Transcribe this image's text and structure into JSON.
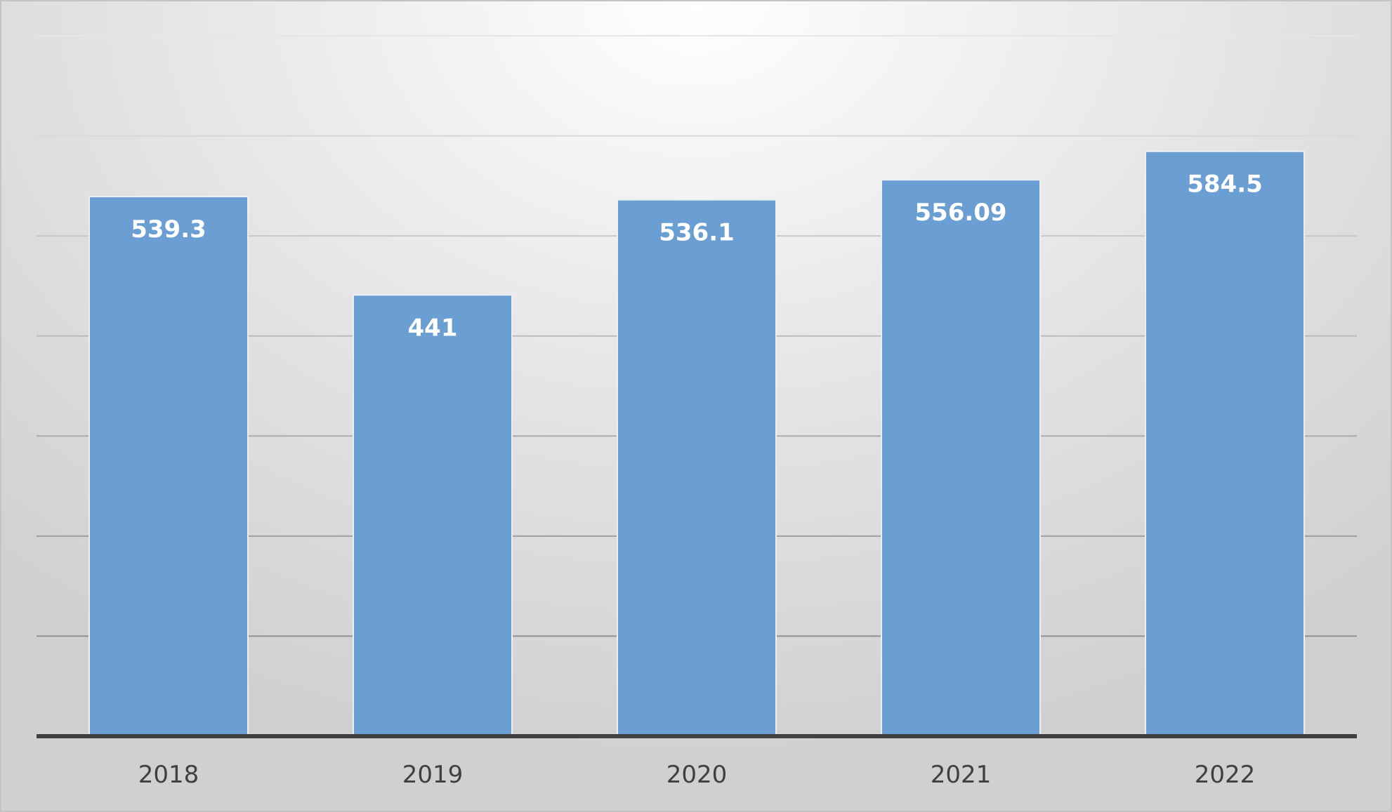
{
  "chart_data": {
    "type": "bar",
    "categories": [
      "2018",
      "2019",
      "2020",
      "2021",
      "2022"
    ],
    "values": [
      539.3,
      441,
      536.1,
      556.09,
      584.5
    ],
    "data_labels": [
      "539.3",
      "441",
      "536.1",
      "556.09",
      "584.5"
    ],
    "title": "",
    "xlabel": "",
    "ylabel": "",
    "ylim": [
      0,
      700
    ],
    "grid": true,
    "legend": "none",
    "colors": {
      "bar": "#6b9fd3",
      "bar_border": "#e8f0f8",
      "axis": "#404040",
      "tick_text": "#404040",
      "label_text": "#ffffff"
    }
  }
}
